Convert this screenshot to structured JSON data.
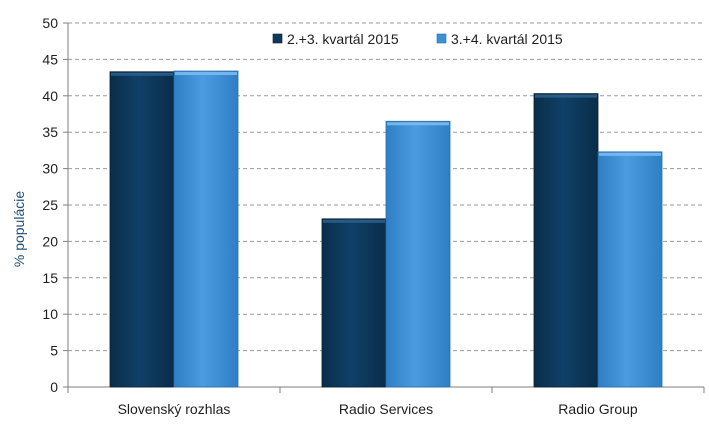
{
  "chart_data": {
    "type": "bar",
    "title": "",
    "xlabel": "",
    "ylabel": "% populácie",
    "ylim": [
      0,
      50
    ],
    "yticks": [
      0,
      5,
      10,
      15,
      20,
      25,
      30,
      35,
      40,
      45,
      50
    ],
    "grid": true,
    "legend_position": "top-right",
    "categories": [
      "Slovenský rozhlas",
      "Radio Services",
      "Radio Group"
    ],
    "series": [
      {
        "name": "2.+3. kvartál 2015",
        "color": "#0d3a5c",
        "values": [
          43.3,
          23.1,
          40.3
        ]
      },
      {
        "name": "3.+4. kvartál 2015",
        "color": "#3d8fd6",
        "values": [
          43.4,
          36.5,
          32.3
        ]
      }
    ]
  }
}
